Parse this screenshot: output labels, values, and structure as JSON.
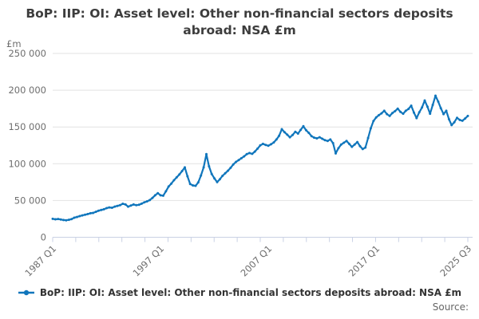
{
  "title_lines": [
    "BoP: IIP: OI: Asset level: Other non-financial sectors deposits",
    "abroad: NSA £m"
  ],
  "unit_label": "£m",
  "legend": {
    "label": "BoP: IIP: OI: Asset level: Other non-financial sectors deposits abroad: NSA £m"
  },
  "source_label": "Source:",
  "colors": {
    "line": "#1076bc",
    "grid": "#e2e2e2",
    "axis": "#c9d1e4",
    "text_muted": "#6e6e6e",
    "title_text": "#3d3d3d"
  },
  "chart_data": {
    "type": "line",
    "title": "BoP: IIP: OI: Asset level: Other non-financial sectors deposits abroad: NSA £m",
    "xlabel": "",
    "ylabel": "£m",
    "ylim": [
      0,
      250000
    ],
    "grid": "horizontal",
    "legend_position": "bottom",
    "frequency": "quarterly",
    "x_start": "1987 Q1",
    "x_end": "2025 Q3",
    "y_ticks": [
      {
        "value": 0,
        "label": "0"
      },
      {
        "value": 50000,
        "label": "50 000"
      },
      {
        "value": 100000,
        "label": "100 000"
      },
      {
        "value": 150000,
        "label": "150 000"
      },
      {
        "value": 200000,
        "label": "200 000"
      },
      {
        "value": 250000,
        "label": "250 000"
      }
    ],
    "x_ticks": [
      {
        "label": "1987 Q1",
        "index": 0
      },
      {
        "label": "1997 Q1",
        "index": 40
      },
      {
        "label": "2007 Q1",
        "index": 80
      },
      {
        "label": "2017 Q1",
        "index": 120
      },
      {
        "label": "2025 Q3",
        "index": 154
      }
    ],
    "minor_tick_count": 19,
    "series": [
      {
        "name": "BoP: IIP: OI: Asset level: Other non-financial sectors deposits abroad: NSA £m",
        "values": [
          25000,
          24400,
          24800,
          24200,
          23400,
          23100,
          23800,
          24600,
          26600,
          27600,
          28700,
          29700,
          30600,
          31600,
          32600,
          33100,
          34600,
          36100,
          37100,
          38100,
          39600,
          40600,
          40100,
          41600,
          42600,
          43600,
          45600,
          44600,
          41600,
          43100,
          44600,
          43600,
          44100,
          45700,
          47500,
          48800,
          50500,
          53500,
          57000,
          60000,
          57000,
          56500,
          62500,
          69000,
          73000,
          77500,
          81500,
          85500,
          90000,
          95000,
          83000,
          72500,
          70500,
          70000,
          74500,
          84000,
          95000,
          113000,
          96500,
          86000,
          80000,
          75000,
          79000,
          83500,
          87000,
          90500,
          94500,
          99000,
          102500,
          105000,
          107500,
          110000,
          113000,
          114500,
          113500,
          116500,
          120500,
          125000,
          127000,
          125500,
          124500,
          126500,
          129000,
          133000,
          138000,
          147000,
          143000,
          139500,
          136000,
          139000,
          143500,
          141000,
          146000,
          151000,
          145500,
          142000,
          137500,
          135500,
          134500,
          136000,
          134000,
          132000,
          131000,
          133000,
          128000,
          114000,
          121000,
          126000,
          128500,
          131000,
          127000,
          123000,
          126000,
          129500,
          124000,
          120000,
          122000,
          135000,
          148000,
          158000,
          163000,
          166000,
          168500,
          172000,
          167500,
          165000,
          169000,
          171500,
          175000,
          170500,
          168000,
          172000,
          174500,
          179000,
          169500,
          162000,
          170000,
          176500,
          186000,
          177500,
          168000,
          180000,
          192500,
          184500,
          175500,
          167500,
          172000,
          160500,
          152500,
          156500,
          162500,
          159500,
          158500,
          161500,
          165000
        ]
      }
    ]
  }
}
